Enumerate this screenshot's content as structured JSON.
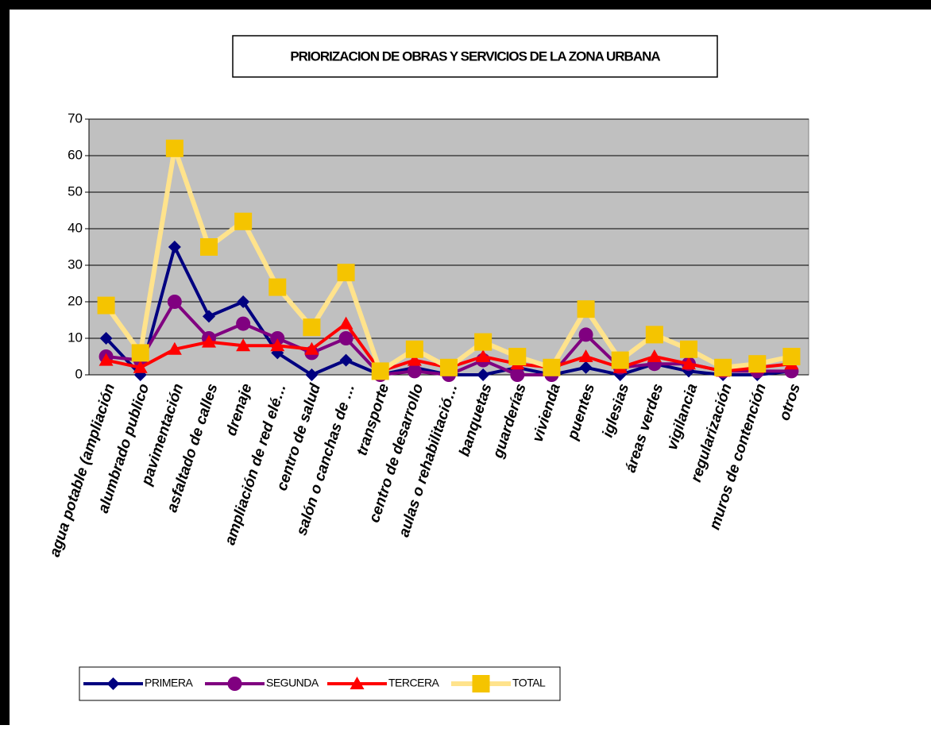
{
  "chart_data": {
    "type": "line",
    "title": "PRIORIZACION DE OBRAS Y SERVICIOS DE LA ZONA URBANA",
    "categories": [
      "agua potable (ampliación",
      "alumbrado publico",
      "pavimentación",
      "asfaltado de calles",
      "drenaje",
      "ampliación de red elé…",
      "centro de salud",
      "salón o canchas de …",
      "transporte",
      "centro de desarrollo",
      "aulas o rehabilitació…",
      "banquetas",
      "guarderías",
      "vivienda",
      "puentes",
      "iglesias",
      "áreas verdes",
      "vigilancia",
      "regularización",
      "muros de contención",
      "otros"
    ],
    "series": [
      {
        "name": "PRIMERA",
        "color": "#000080",
        "marker": "diamond",
        "values": [
          10,
          0,
          35,
          16,
          20,
          6,
          0,
          4,
          0,
          2,
          0,
          0,
          2,
          0,
          2,
          0,
          3,
          1,
          0,
          0,
          1
        ]
      },
      {
        "name": "SEGUNDA",
        "color": "#800080",
        "marker": "circle",
        "values": [
          5,
          4,
          20,
          10,
          14,
          10,
          6,
          10,
          0,
          1,
          0,
          4,
          0,
          0,
          11,
          2,
          3,
          3,
          1,
          1,
          1
        ]
      },
      {
        "name": "TERCERA",
        "color": "#ff0000",
        "marker": "triangle",
        "values": [
          4,
          2,
          7,
          9,
          8,
          8,
          7,
          14,
          1,
          4,
          2,
          5,
          3,
          2,
          5,
          2,
          5,
          3,
          1,
          2,
          3
        ]
      },
      {
        "name": "TOTAL",
        "color": "#ffe38c",
        "marker_color": "#f5c400",
        "marker": "square",
        "values": [
          19,
          6,
          62,
          35,
          42,
          24,
          13,
          28,
          1,
          7,
          2,
          9,
          5,
          2,
          18,
          4,
          11,
          7,
          2,
          3,
          5
        ]
      }
    ],
    "ylim": [
      0,
      70
    ],
    "yticks": [
      0,
      10,
      20,
      30,
      40,
      50,
      60,
      70
    ],
    "grid": true,
    "legend": "bottom"
  }
}
